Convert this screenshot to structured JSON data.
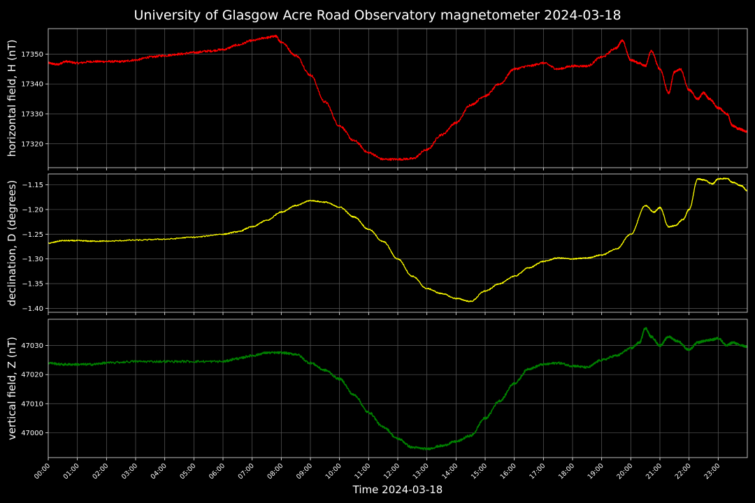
{
  "chart_data": {
    "type": "line",
    "title": "University of Glasgow Acre Road Observatory magnetometer 2024-03-18",
    "xlabel": "Time 2024-03-18",
    "xlim_hours": [
      0,
      24
    ],
    "x_tick_labels": [
      "00:00",
      "01:00",
      "02:00",
      "03:00",
      "04:00",
      "05:00",
      "06:00",
      "07:00",
      "08:00",
      "09:00",
      "10:00",
      "11:00",
      "12:00",
      "13:00",
      "14:00",
      "15:00",
      "16:00",
      "17:00",
      "18:00",
      "19:00",
      "20:00",
      "21:00",
      "22:00",
      "23:00"
    ],
    "grid": true,
    "panels": [
      {
        "name": "H",
        "ylabel": "horizontal field, H (nT)",
        "ylim": [
          17312,
          17358.5
        ],
        "yticks": [
          17320,
          17330,
          17340,
          17350
        ],
        "ytick_labels": [
          "17320",
          "17330",
          "17340",
          "17350"
        ],
        "color": "#ff0000",
        "series": {
          "x": [
            0,
            0.3,
            0.6,
            1,
            1.5,
            2,
            2.5,
            3,
            3.5,
            4,
            4.5,
            5,
            5.5,
            6,
            6.5,
            7,
            7.5,
            7.8,
            8,
            8.5,
            9,
            9.5,
            10,
            10.5,
            11,
            11.5,
            12,
            12.5,
            13,
            13.5,
            14,
            14.5,
            15,
            15.5,
            16,
            16.5,
            17,
            17.5,
            18,
            18.5,
            19,
            19.5,
            19.7,
            20,
            20.3,
            20.5,
            20.7,
            21,
            21.3,
            21.5,
            21.7,
            22,
            22.3,
            22.5,
            22.7,
            23,
            23.3,
            23.5,
            23.7,
            24
          ],
          "y": [
            17347,
            17346.5,
            17347.5,
            17347,
            17347.5,
            17347.5,
            17347.5,
            17348,
            17349,
            17349.5,
            17350,
            17350.5,
            17351,
            17351.5,
            17353,
            17354.5,
            17355.5,
            17356,
            17354,
            17349.5,
            17343,
            17334,
            17326,
            17321,
            17317,
            17314.8,
            17314.8,
            17315,
            17318,
            17323,
            17327,
            17333,
            17336,
            17340,
            17345,
            17346,
            17347,
            17345,
            17346,
            17346,
            17349,
            17352,
            17354.5,
            17348,
            17347,
            17346,
            17351,
            17345,
            17337,
            17344,
            17345,
            17338,
            17335,
            17337,
            17335,
            17332,
            17330,
            17326,
            17325,
            17324
          ]
        }
      },
      {
        "name": "D",
        "ylabel": "declination, D (degrees)",
        "ylim": [
          -1.408,
          -1.128
        ],
        "yticks": [
          -1.4,
          -1.35,
          -1.3,
          -1.25,
          -1.2,
          -1.15
        ],
        "ytick_labels": [
          "−1.40",
          "−1.35",
          "−1.30",
          "−1.25",
          "−1.20",
          "−1.15"
        ],
        "color": "#ffff00",
        "series": {
          "x": [
            0,
            0.5,
            1,
            1.5,
            2,
            3,
            4,
            5,
            6,
            6.5,
            7,
            7.5,
            8,
            8.5,
            9,
            9.5,
            10,
            10.5,
            11,
            11.5,
            12,
            12.5,
            13,
            13.5,
            14,
            14.5,
            15,
            15.5,
            16,
            16.5,
            17,
            17.5,
            18,
            18.5,
            19,
            19.5,
            20,
            20.5,
            20.8,
            21,
            21.3,
            21.5,
            21.8,
            22,
            22.3,
            22.5,
            22.8,
            23,
            23.3,
            23.5,
            23.8,
            24
          ],
          "y": [
            -1.268,
            -1.263,
            -1.263,
            -1.264,
            -1.264,
            -1.262,
            -1.26,
            -1.256,
            -1.25,
            -1.245,
            -1.235,
            -1.222,
            -1.205,
            -1.192,
            -1.182,
            -1.185,
            -1.195,
            -1.215,
            -1.24,
            -1.265,
            -1.3,
            -1.335,
            -1.36,
            -1.37,
            -1.38,
            -1.386,
            -1.365,
            -1.35,
            -1.335,
            -1.318,
            -1.305,
            -1.298,
            -1.3,
            -1.298,
            -1.292,
            -1.28,
            -1.25,
            -1.192,
            -1.205,
            -1.196,
            -1.235,
            -1.233,
            -1.22,
            -1.2,
            -1.138,
            -1.14,
            -1.148,
            -1.138,
            -1.137,
            -1.145,
            -1.152,
            -1.162
          ]
        }
      },
      {
        "name": "Z",
        "ylabel": "vertical field, Z (nT)",
        "ylim": [
          46991.5,
          47039
        ],
        "yticks": [
          47000,
          47010,
          47020,
          47030
        ],
        "ytick_labels": [
          "47000",
          "47010",
          "47020",
          "47030"
        ],
        "color": "#008000",
        "series": {
          "x": [
            0,
            0.5,
            1,
            1.5,
            2,
            3,
            4,
            5,
            6,
            6.5,
            7,
            7.5,
            8,
            8.5,
            9,
            9.5,
            10,
            10.5,
            11,
            11.5,
            12,
            12.5,
            13,
            13.5,
            14,
            14.5,
            15,
            15.5,
            16,
            16.5,
            17,
            17.5,
            18,
            18.5,
            19,
            19.5,
            20,
            20.3,
            20.5,
            20.7,
            21,
            21.3,
            21.6,
            22,
            22.3,
            22.5,
            22.8,
            23,
            23.3,
            23.5,
            23.8,
            24
          ],
          "y": [
            47024,
            47023.5,
            47023.5,
            47023.5,
            47024,
            47024.5,
            47024.5,
            47024.5,
            47024.5,
            47025.5,
            47026.5,
            47027.5,
            47027.5,
            47027,
            47024,
            47021.5,
            47018.5,
            47013,
            47007,
            47002,
            46998,
            46995,
            46994.5,
            46995.5,
            46997,
            46999,
            47005,
            47011,
            47017,
            47022,
            47023.5,
            47024,
            47023,
            47022.5,
            47025,
            47026.5,
            47029,
            47031,
            47036,
            47033,
            47030,
            47033,
            47031.5,
            47028.5,
            47031,
            47031.5,
            47032,
            47032.5,
            47030,
            47031,
            47030,
            47029.5
          ]
        }
      }
    ]
  }
}
